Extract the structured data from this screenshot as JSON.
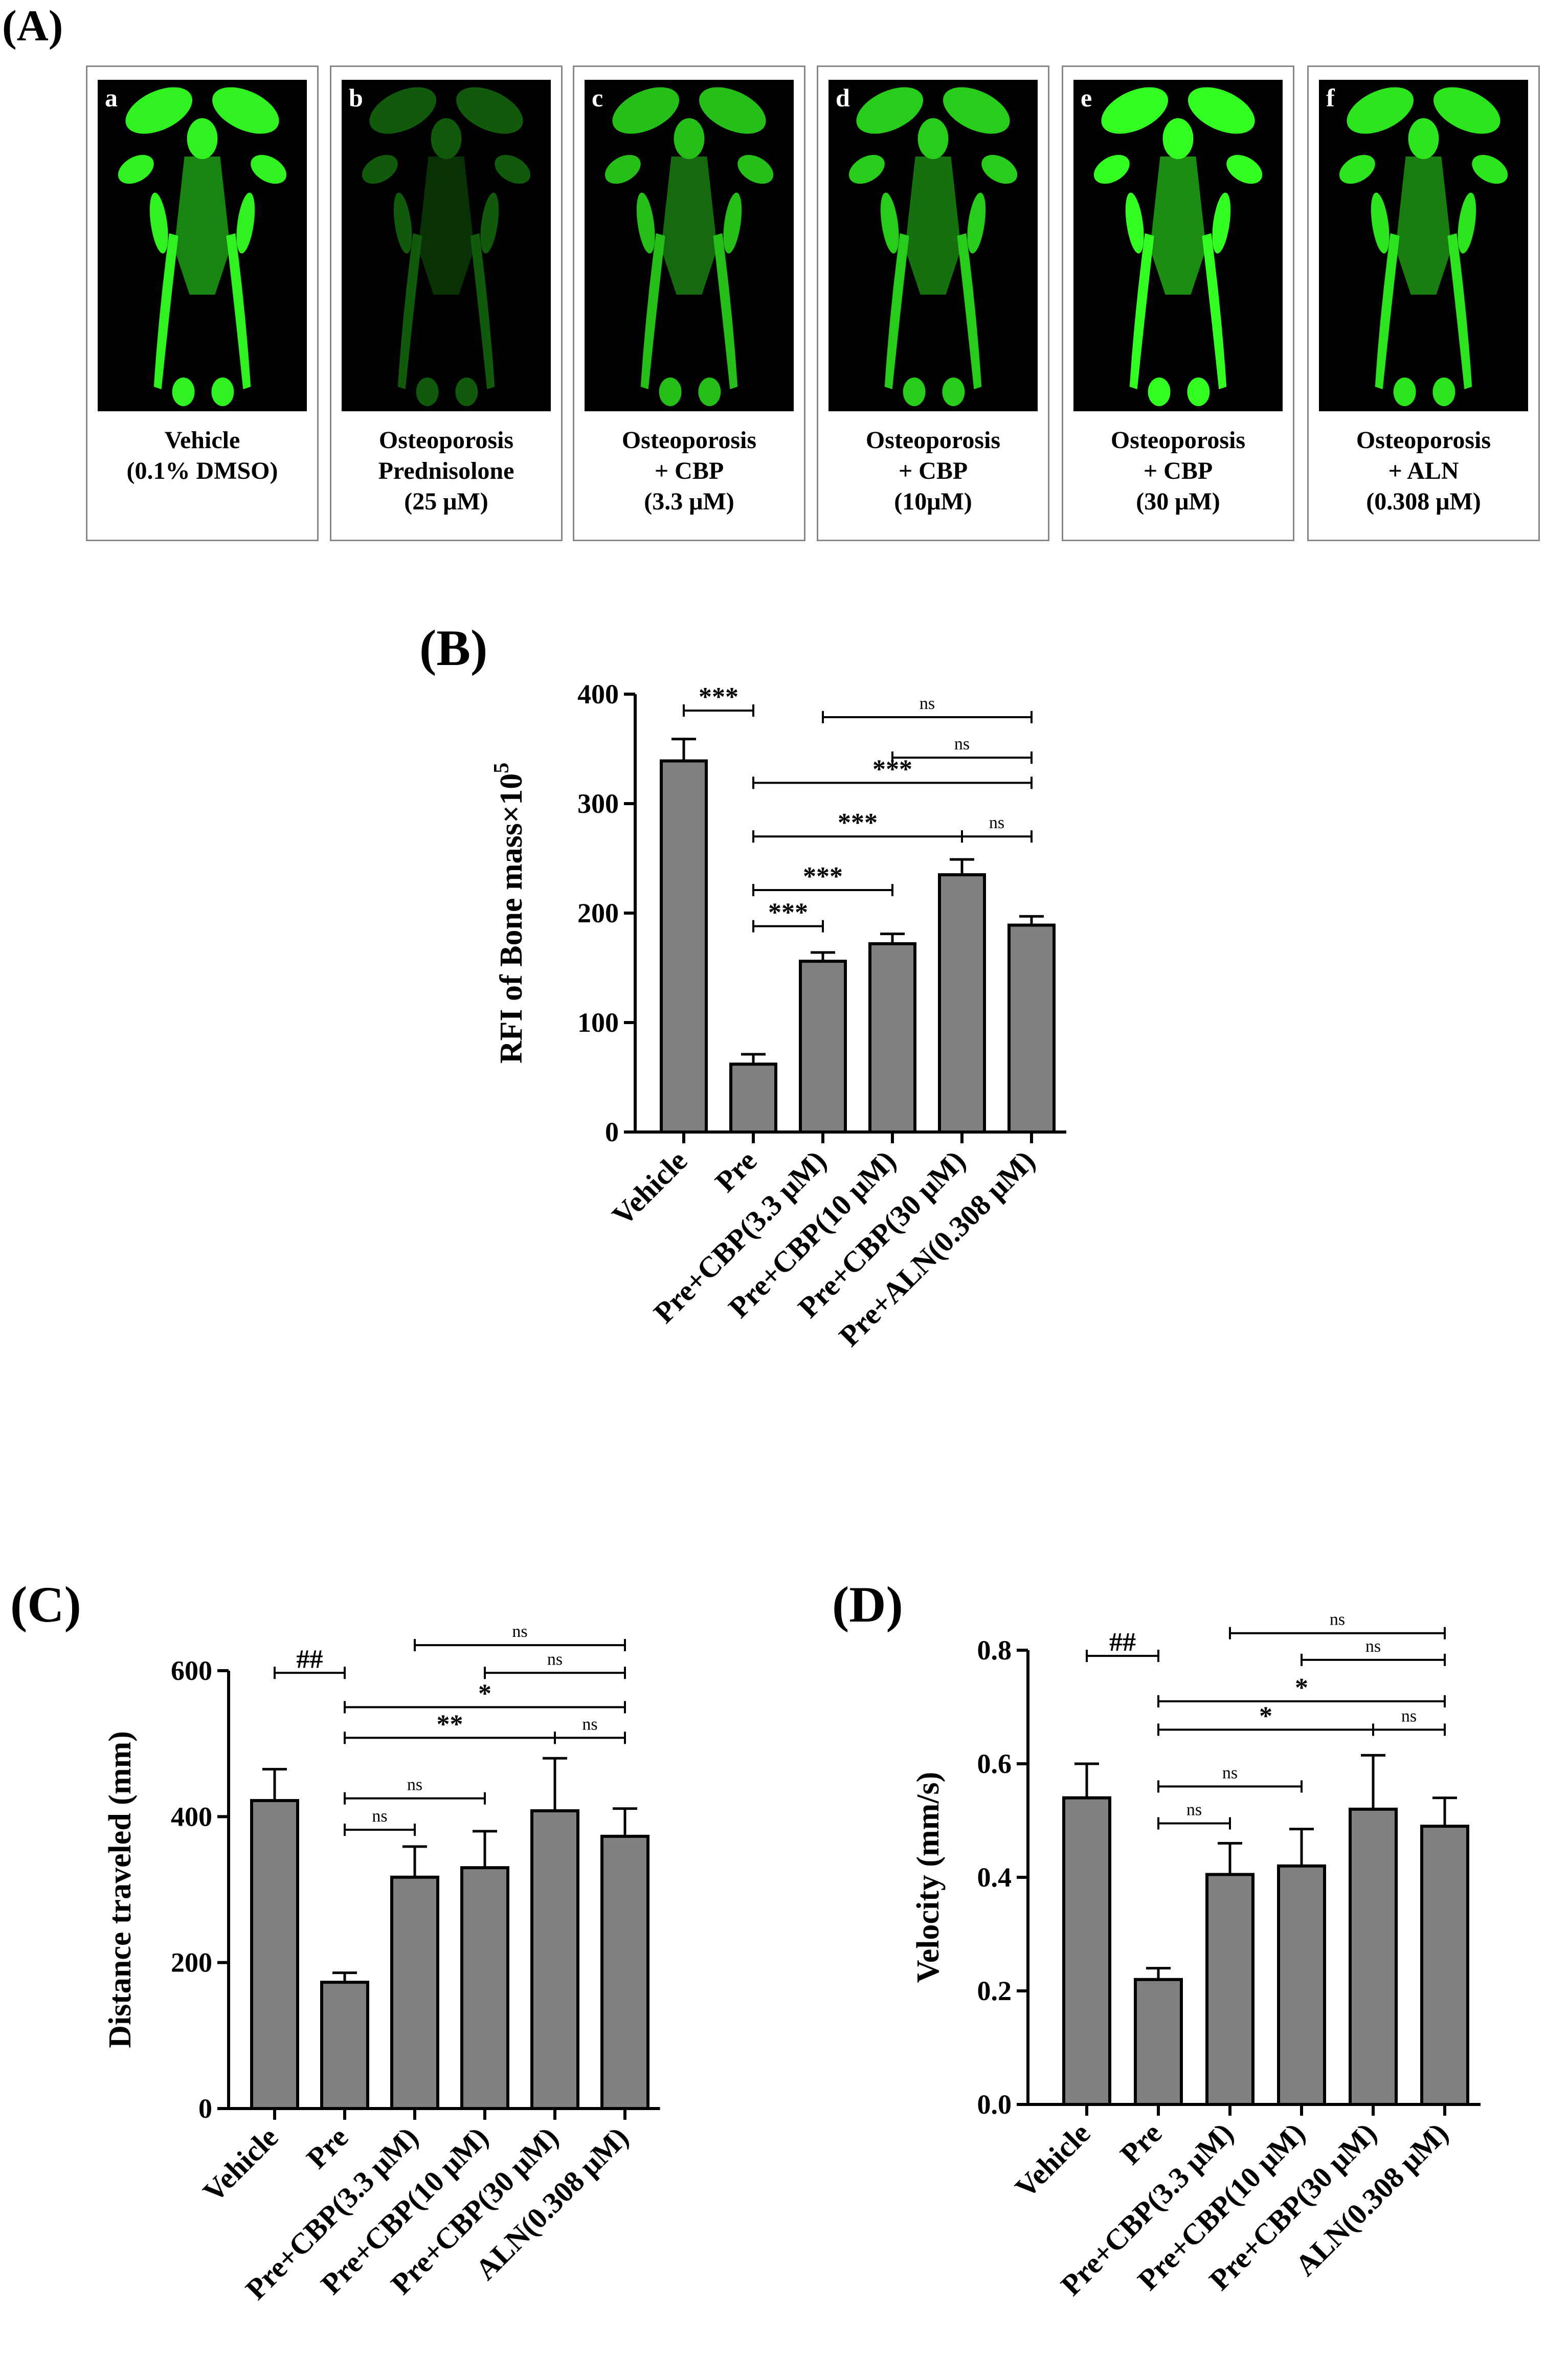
{
  "panel_A": {
    "label": "(A)",
    "images": [
      {
        "letter": "a",
        "caption": [
          "Vehicle",
          "(0.1% DMSO)"
        ],
        "brightness": 0.95
      },
      {
        "letter": "b",
        "caption": [
          "Osteoporosis",
          "Prednisolone",
          "(25 μM)"
        ],
        "brightness": 0.35
      },
      {
        "letter": "c",
        "caption": [
          "Osteoporosis",
          "+ CBP",
          "(3.3 μM)"
        ],
        "brightness": 0.75
      },
      {
        "letter": "d",
        "caption": [
          "Osteoporosis",
          "+ CBP",
          "(10μM)"
        ],
        "brightness": 0.8
      },
      {
        "letter": "e",
        "caption": [
          "Osteoporosis",
          "+ CBP",
          "(30 μM)"
        ],
        "brightness": 1.0
      },
      {
        "letter": "f",
        "caption": [
          "Osteoporosis",
          "+ ALN",
          "(0.308 μM)"
        ],
        "brightness": 0.9
      }
    ]
  },
  "chart_data": [
    {
      "panel": "(B)",
      "type": "bar",
      "ylabel": "RFI of Bone mass×10",
      "ylabel_sup": "5",
      "ylim": [
        0,
        400
      ],
      "yticks": [
        "0",
        "100",
        "200",
        "300",
        "400"
      ],
      "categories": [
        "Vehicle",
        "Pre",
        "Pre+CBP(3.3 μM)",
        "Pre+CBP(10 μM)",
        "Pre+CBP(30 μM)",
        "Pre+ALN(0.308 μM)"
      ],
      "values": [
        339,
        62,
        156,
        172,
        235,
        189
      ],
      "errors": [
        20,
        9,
        8,
        9,
        14,
        8
      ],
      "annotations": [
        {
          "from": 0,
          "to": 1,
          "label": "***",
          "value": 385
        },
        {
          "from": 2,
          "to": 5,
          "label": "ns",
          "value": 379
        },
        {
          "from": 3,
          "to": 5,
          "label": "ns",
          "value": 342
        },
        {
          "from": 1,
          "to": 5,
          "label": "***",
          "value": 319
        },
        {
          "from": 1,
          "to": 4,
          "label": "***",
          "value": 270
        },
        {
          "from": 4,
          "to": 5,
          "label": "ns",
          "value": 270
        },
        {
          "from": 1,
          "to": 3,
          "label": "***",
          "value": 221
        },
        {
          "from": 1,
          "to": 2,
          "label": "***",
          "value": 188
        }
      ]
    },
    {
      "panel": "(C)",
      "type": "bar",
      "ylabel": "Distance traveled (mm)",
      "ylim": [
        0,
        600
      ],
      "yticks": [
        "0",
        "200",
        "400",
        "600"
      ],
      "categories": [
        "Vehicle",
        "Pre",
        "Pre+CBP(3.3 μM)",
        "Pre+CBP(10 μM)",
        "Pre+CBP(30 μM)",
        "ALN(0.308 μM)"
      ],
      "values": [
        422,
        173,
        317,
        330,
        408,
        373
      ],
      "errors": [
        43,
        13,
        42,
        50,
        72,
        38
      ],
      "annotations": [
        {
          "from": 0,
          "to": 1,
          "label": "##",
          "value": 597
        },
        {
          "from": 2,
          "to": 5,
          "label": "ns",
          "value": 635
        },
        {
          "from": 3,
          "to": 5,
          "label": "ns",
          "value": 597
        },
        {
          "from": 1,
          "to": 5,
          "label": "*",
          "value": 550
        },
        {
          "from": 1,
          "to": 4,
          "label": "**",
          "value": 508
        },
        {
          "from": 4,
          "to": 5,
          "label": "ns",
          "value": 508
        },
        {
          "from": 1,
          "to": 3,
          "label": "ns",
          "value": 425
        },
        {
          "from": 1,
          "to": 2,
          "label": "ns",
          "value": 382
        }
      ]
    },
    {
      "panel": "(D)",
      "type": "bar",
      "ylabel": "Velocity (mm/s)",
      "ylim": [
        0,
        0.8
      ],
      "yticks": [
        "0.0",
        "0.2",
        "0.4",
        "0.6",
        "0.8"
      ],
      "categories": [
        "Vehicle",
        "Pre",
        "Pre+CBP(3.3 μM)",
        "Pre+CBP(10 μM)",
        "Pre+CBP(30 μM)",
        "ALN(0.308 μM)"
      ],
      "values": [
        0.54,
        0.22,
        0.405,
        0.42,
        0.52,
        0.49
      ],
      "errors": [
        0.06,
        0.02,
        0.055,
        0.065,
        0.095,
        0.05
      ],
      "annotations": [
        {
          "from": 0,
          "to": 1,
          "label": "##",
          "value": 0.79
        },
        {
          "from": 2,
          "to": 5,
          "label": "ns",
          "value": 0.83
        },
        {
          "from": 3,
          "to": 5,
          "label": "ns",
          "value": 0.783
        },
        {
          "from": 1,
          "to": 5,
          "label": "*",
          "value": 0.71
        },
        {
          "from": 1,
          "to": 4,
          "label": "*",
          "value": 0.66
        },
        {
          "from": 4,
          "to": 5,
          "label": "ns",
          "value": 0.66
        },
        {
          "from": 1,
          "to": 3,
          "label": "ns",
          "value": 0.56
        },
        {
          "from": 1,
          "to": 2,
          "label": "ns",
          "value": 0.495
        }
      ]
    }
  ],
  "colors": {
    "bar_fill": "#808080",
    "bar_stroke": "#000000",
    "fluorescence": "#33ff22",
    "background": "#000000"
  }
}
